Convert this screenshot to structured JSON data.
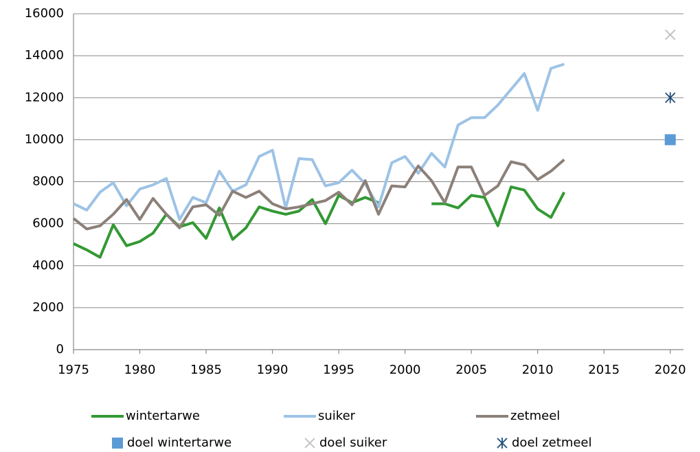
{
  "chart_data": {
    "type": "line",
    "x": [
      1975,
      1976,
      1977,
      1978,
      1979,
      1980,
      1981,
      1982,
      1983,
      1984,
      1985,
      1986,
      1987,
      1988,
      1989,
      1990,
      1991,
      1992,
      1993,
      1994,
      1995,
      1996,
      1997,
      1998,
      1999,
      2000,
      2001,
      2002,
      2003,
      2004,
      2005,
      2006,
      2007,
      2008,
      2009,
      2010,
      2011,
      2012
    ],
    "series": [
      {
        "name": "wintertarwe",
        "color": "#339933",
        "marker": "line",
        "values": [
          5050,
          4750,
          4400,
          5950,
          4950,
          5150,
          5550,
          6450,
          5850,
          6050,
          5300,
          6750,
          5250,
          5800,
          6800,
          6600,
          6450,
          6600,
          7150,
          6000,
          7350,
          7000,
          7250,
          7000,
          null,
          null,
          null,
          6950,
          6950,
          6750,
          7350,
          7250,
          5900,
          7750,
          7600,
          6700,
          6300,
          7500
        ]
      },
      {
        "name": "suiker",
        "color": "#9dc3e6",
        "marker": "line",
        "values": [
          6950,
          6650,
          7500,
          7950,
          6850,
          7650,
          7850,
          8150,
          6200,
          7250,
          7000,
          8500,
          7550,
          7850,
          9200,
          9500,
          6750,
          9100,
          9050,
          7800,
          7950,
          8550,
          7900,
          6800,
          8900,
          9200,
          8400,
          9350,
          8700,
          10700,
          11050,
          11050,
          11650,
          12400,
          13150,
          11400,
          13400,
          13600
        ]
      },
      {
        "name": "zetmeel",
        "color": "#8c8079",
        "marker": "line",
        "values": [
          6250,
          5750,
          5900,
          6450,
          7150,
          6200,
          7200,
          6450,
          5800,
          6800,
          6900,
          6400,
          7550,
          7250,
          7550,
          6950,
          6700,
          6800,
          6950,
          7100,
          7500,
          6900,
          8050,
          6450,
          7800,
          7750,
          8750,
          8050,
          7000,
          8700,
          8700,
          7350,
          7800,
          8950,
          8800,
          8100,
          8500,
          9050
        ]
      },
      {
        "name": "doel wintertarwe",
        "color": "#5b9bd5",
        "marker": "square",
        "x": [
          2020
        ],
        "values": [
          10000
        ]
      },
      {
        "name": "doel suiker",
        "color": "#bfbfbf",
        "marker": "x",
        "x": [
          2020
        ],
        "values": [
          15000
        ]
      },
      {
        "name": "doel zetmeel",
        "color": "#1f4e79",
        "marker": "asterisk",
        "x": [
          2020
        ],
        "values": [
          12000
        ]
      }
    ],
    "xlim": [
      1975,
      2021
    ],
    "xticks": [
      1975,
      1980,
      1985,
      1990,
      1995,
      2000,
      2005,
      2010,
      2015,
      2020
    ],
    "ylim": [
      0,
      16000
    ],
    "yticks": [
      0,
      2000,
      4000,
      6000,
      8000,
      10000,
      12000,
      14000,
      16000
    ],
    "grid": true
  }
}
